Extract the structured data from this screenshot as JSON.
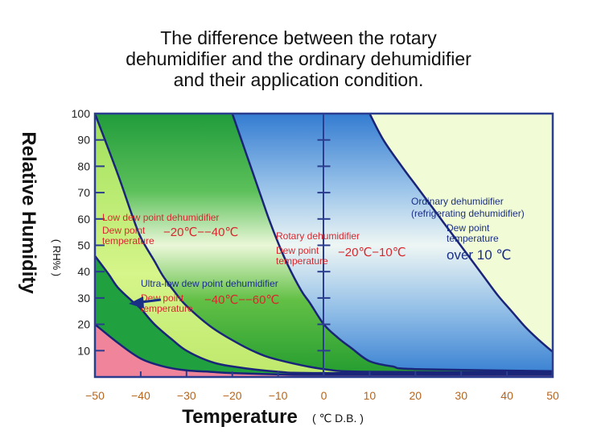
{
  "title_lines": [
    "The difference between the rotary",
    "dehumidifier and the ordinary dehumidifier",
    "and their application condition."
  ],
  "colors": {
    "frame": "#2a3d8f",
    "curve": "#1a2478",
    "dark_green": "#21a040",
    "mid_green": "#3fb83a",
    "light_green": "#c8f07a",
    "pink": "#f0849a",
    "blue": "#3d87d8",
    "pale_yellow": "#f1fbd5",
    "red_text": "#d8282e",
    "navy_text": "#1a2f86",
    "x_tick_text": "#b5651d"
  },
  "chart_data": {
    "type": "area",
    "title": "The difference between the rotary dehumidifier and the ordinary dehumidifier and their application condition.",
    "xlabel": "Temperature",
    "xlabel_unit": "( ℃ D.B. )",
    "ylabel": "Relative Humidity",
    "ylabel_unit": "( RH% )",
    "xlim": [
      -50,
      50
    ],
    "ylim": [
      0,
      100
    ],
    "x_ticks": [
      -50,
      -40,
      -30,
      -20,
      -10,
      0,
      10,
      20,
      30,
      40,
      50
    ],
    "y_ticks": [
      10,
      20,
      30,
      40,
      50,
      60,
      70,
      80,
      90,
      100
    ],
    "x_tick_labels": [
      "−50",
      "−40",
      "−30",
      "−20",
      "−10",
      "0",
      "10",
      "20",
      "30",
      "40",
      "50"
    ],
    "y_tick_labels": [
      "10",
      "20",
      "30",
      "40",
      "50",
      "60",
      "70",
      "80",
      "90",
      "100"
    ],
    "boundaries": [
      {
        "id": "c1",
        "points": [
          [
            -50,
            20
          ],
          [
            -45,
            13
          ],
          [
            -40,
            7
          ],
          [
            -35,
            4
          ],
          [
            -30,
            2.5
          ],
          [
            -25,
            2
          ],
          [
            -20,
            1.5
          ],
          [
            -10,
            1
          ],
          [
            0,
            0.8
          ],
          [
            50,
            0.8
          ]
        ]
      },
      {
        "id": "c2",
        "points": [
          [
            -50,
            46
          ],
          [
            -47,
            39
          ],
          [
            -45,
            34
          ],
          [
            -42,
            29
          ],
          [
            -40,
            26
          ],
          [
            -37,
            20
          ],
          [
            -33,
            14
          ],
          [
            -30,
            10
          ],
          [
            -25,
            6
          ],
          [
            -20,
            4
          ],
          [
            -10,
            2
          ],
          [
            0,
            1.5
          ],
          [
            50,
            1.5
          ]
        ]
      },
      {
        "id": "c3",
        "points": [
          [
            -50,
            100
          ],
          [
            -45,
            77
          ],
          [
            -42,
            62
          ],
          [
            -40,
            53
          ],
          [
            -37,
            44
          ],
          [
            -35,
            38
          ],
          [
            -32,
            31
          ],
          [
            -30,
            27
          ],
          [
            -25,
            19.5
          ],
          [
            -20,
            14
          ],
          [
            -15,
            9.5
          ],
          [
            -10,
            6.5
          ],
          [
            0,
            3
          ],
          [
            10,
            2
          ],
          [
            50,
            1.8
          ]
        ]
      },
      {
        "id": "c4",
        "points": [
          [
            -20,
            100
          ],
          [
            -17,
            85
          ],
          [
            -14,
            70
          ],
          [
            -12,
            60
          ],
          [
            -10,
            51
          ],
          [
            -8,
            43
          ],
          [
            -5,
            33
          ],
          [
            -3,
            28
          ],
          [
            0,
            20
          ],
          [
            3,
            15
          ],
          [
            6,
            11
          ],
          [
            10,
            6
          ],
          [
            15,
            4
          ],
          [
            20,
            3
          ],
          [
            50,
            2.2
          ]
        ]
      },
      {
        "id": "c5",
        "points": [
          [
            10,
            100
          ],
          [
            13,
            90
          ],
          [
            17,
            80
          ],
          [
            20,
            73
          ],
          [
            23,
            66
          ],
          [
            26,
            59
          ],
          [
            29,
            52
          ],
          [
            32,
            45
          ],
          [
            35,
            38
          ],
          [
            38,
            31
          ],
          [
            41,
            25
          ],
          [
            44,
            19
          ],
          [
            47,
            14
          ],
          [
            50,
            9.5
          ]
        ]
      }
    ],
    "regions": [
      {
        "name": "Low dew point dehumidifier",
        "dew_point": "−20℃−−40℃"
      },
      {
        "name": "Rotary dehumidifier",
        "dew_point": "−20℃−10℃"
      },
      {
        "name": "Ultra-low dew point dehumidifier",
        "dew_point": "−40℃−−60℃"
      },
      {
        "name": "Ordinary dehumidifier (refrigerating dehumidifier)",
        "dew_point": "over 10 ℃"
      }
    ],
    "grid": false
  },
  "annotations": {
    "low": {
      "line1": "Low dew point dehumidifier",
      "line2a": "Dew point",
      "line2b": "temperature",
      "range": "−20℃−−40℃"
    },
    "rotary": {
      "line1": "Rotary dehumidifier",
      "line2a": "Dew point",
      "line2b": "temperature",
      "range": "−20℃−10℃"
    },
    "ultra": {
      "line1": "Ultra-low dew point dehumidifier",
      "line2a": "Dew point",
      "line2b": "temperature",
      "range": "−40℃−−60℃"
    },
    "ordinary": {
      "line1": "Ordinary dehumidifier",
      "line1b": "(refrigerating dehumidifier)",
      "line2a": "Dew point",
      "line2b": "temperature",
      "range": "over 10 ℃"
    }
  },
  "axis_titles": {
    "y_main": "Relative Humidity",
    "y_unit": "( RH% )",
    "x_main": "Temperature",
    "x_unit": "( ℃ D.B. )"
  }
}
